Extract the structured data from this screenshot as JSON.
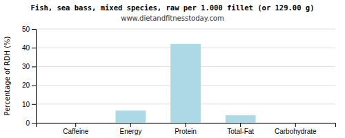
{
  "chart_data": {
    "type": "bar",
    "title": "Fish, sea bass, mixed species, raw per 1.000 fillet (or 129.00 g)",
    "subtitle": "www.dietandfitnesstoday.com",
    "categories": [
      "Caffeine",
      "Energy",
      "Protein",
      "Total-Fat",
      "Carbohydrate"
    ],
    "values": [
      0,
      6.5,
      42,
      4,
      0
    ],
    "color": "#add8e6",
    "ylabel": "Percentage of RDH (%)",
    "ylim": [
      0,
      50
    ],
    "yticks": [
      0,
      10,
      20,
      30,
      40,
      50
    ],
    "grid": true
  }
}
